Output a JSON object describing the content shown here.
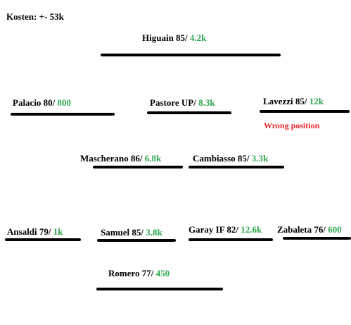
{
  "header": {
    "cost_label": "Kosten: +- 53k"
  },
  "players": {
    "higuain": {
      "name": "Higuain 85/",
      "price": "4.2k"
    },
    "palacio": {
      "name": "Palacio 80/",
      "price": "800"
    },
    "pastore": {
      "name": "Pastore UP/",
      "price": "8.3k"
    },
    "lavezzi": {
      "name": "Lavezzi 85/",
      "price": "12k"
    },
    "mascherano": {
      "name": "Mascherano 86/",
      "price": "6.8k"
    },
    "cambiasso": {
      "name": "Cambiasso 85/",
      "price": "3.3k"
    },
    "ansaldi": {
      "name": "Ansaldi 79/",
      "price": "1k"
    },
    "samuel": {
      "name": "Samuel 85/",
      "price": "3.8k"
    },
    "garay": {
      "name": "Garay IF 82/",
      "price": "12.6k"
    },
    "zabaleta": {
      "name": "Zabaleta 76/",
      "price": "600"
    },
    "romero": {
      "name": "Romero 77/",
      "price": "450"
    }
  },
  "notes": {
    "lavezzi_warning": "Wrong position"
  },
  "colors": {
    "price": "#2fa84f",
    "warning": "#e8262b",
    "text": "#000000",
    "line": "#000000"
  }
}
